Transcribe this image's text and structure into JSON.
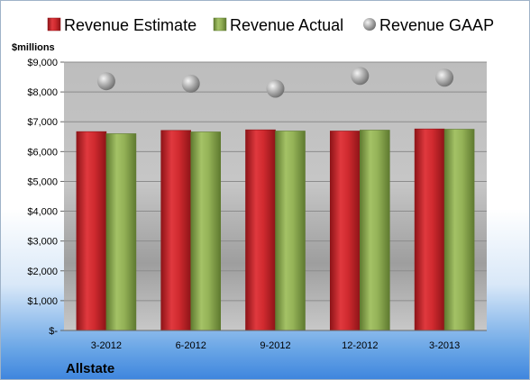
{
  "chart_data": {
    "type": "bar",
    "categories": [
      "3-2012",
      "6-2012",
      "9-2012",
      "12-2012",
      "3-2013"
    ],
    "series": [
      {
        "name": "Revenue Estimate",
        "kind": "bar",
        "color": "#c8262b",
        "values": [
          6670,
          6710,
          6730,
          6690,
          6760
        ]
      },
      {
        "name": "Revenue Actual",
        "kind": "bar",
        "color": "#8aa94e",
        "values": [
          6600,
          6660,
          6690,
          6720,
          6750
        ]
      },
      {
        "name": "Revenue GAAP",
        "kind": "marker",
        "color": "#a8a8a8",
        "values": [
          8360,
          8280,
          8110,
          8540,
          8480
        ]
      }
    ],
    "y_ticks": [
      "$-",
      "$1,000",
      "$2,000",
      "$3,000",
      "$4,000",
      "$5,000",
      "$6,000",
      "$7,000",
      "$8,000",
      "$9,000"
    ],
    "ylim": [
      0,
      9000
    ],
    "ylabel": "$millions",
    "legend_position": "top",
    "grid": true
  },
  "company": "Allstate"
}
